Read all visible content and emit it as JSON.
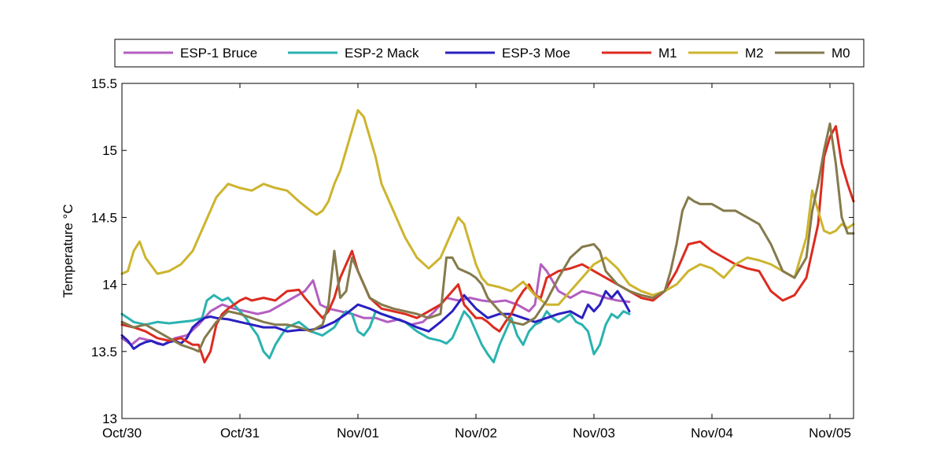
{
  "chart_data": {
    "type": "line",
    "ylabel": "Temperature °C",
    "xlabel": "",
    "title": "",
    "ylim": [
      13,
      15.5
    ],
    "xlim": [
      0,
      6.2
    ],
    "yticks": [
      13,
      13.5,
      14,
      14.5,
      15,
      15.5
    ],
    "ytick_labels": [
      "13",
      "13.5",
      "14",
      "14.5",
      "15",
      "15.5"
    ],
    "xticks": [
      0,
      1,
      2,
      3,
      4,
      5,
      6
    ],
    "xtick_labels": [
      "Oct/30",
      "Oct/31",
      "Nov/01",
      "Nov/02",
      "Nov/03",
      "Nov/04",
      "Nov/05"
    ],
    "legend_position": "top (outside, above plot)",
    "grid": false,
    "series": [
      {
        "name": "ESP-1 Bruce",
        "color": "#B35FC0",
        "x": [
          0,
          0.08,
          0.15,
          0.25,
          0.35,
          0.45,
          0.55,
          0.65,
          0.75,
          0.85,
          0.95,
          1.05,
          1.15,
          1.25,
          1.35,
          1.45,
          1.55,
          1.62,
          1.68,
          1.75,
          1.85,
          1.95,
          2.05,
          2.15,
          2.25,
          2.35,
          2.45,
          2.55,
          2.65,
          2.75,
          2.85,
          2.95,
          3.05,
          3.15,
          3.25,
          3.35,
          3.45,
          3.5,
          3.55,
          3.6,
          3.7,
          3.8,
          3.9,
          4.0,
          4.1,
          4.2,
          4.3
        ],
        "y": [
          13.6,
          13.55,
          13.6,
          13.58,
          13.55,
          13.6,
          13.62,
          13.7,
          13.8,
          13.85,
          13.82,
          13.8,
          13.78,
          13.8,
          13.85,
          13.9,
          13.95,
          14.03,
          13.85,
          13.82,
          13.8,
          13.78,
          13.75,
          13.75,
          13.72,
          13.74,
          13.7,
          13.72,
          13.8,
          13.9,
          13.88,
          13.9,
          13.88,
          13.87,
          13.88,
          13.85,
          13.8,
          13.85,
          14.15,
          14.1,
          13.95,
          13.9,
          13.95,
          13.93,
          13.9,
          13.88,
          13.87
        ]
      },
      {
        "name": "ESP-2 Mack",
        "color": "#2AB3B0",
        "x": [
          0,
          0.1,
          0.2,
          0.3,
          0.4,
          0.5,
          0.6,
          0.68,
          0.72,
          0.78,
          0.85,
          0.9,
          0.95,
          1.0,
          1.05,
          1.1,
          1.15,
          1.2,
          1.25,
          1.3,
          1.35,
          1.4,
          1.5,
          1.6,
          1.7,
          1.8,
          1.85,
          1.9,
          1.95,
          2.0,
          2.05,
          2.1,
          2.15,
          2.2,
          2.3,
          2.4,
          2.5,
          2.6,
          2.7,
          2.75,
          2.8,
          2.85,
          2.9,
          2.95,
          3.0,
          3.05,
          3.1,
          3.15,
          3.2,
          3.25,
          3.3,
          3.35,
          3.4,
          3.45,
          3.5,
          3.55,
          3.6,
          3.65,
          3.7,
          3.75,
          3.8,
          3.85,
          3.9,
          3.95,
          4.0,
          4.05,
          4.1,
          4.15,
          4.2,
          4.25,
          4.3
        ],
        "y": [
          13.78,
          13.72,
          13.7,
          13.72,
          13.71,
          13.72,
          13.73,
          13.75,
          13.88,
          13.92,
          13.88,
          13.9,
          13.85,
          13.8,
          13.75,
          13.68,
          13.62,
          13.5,
          13.45,
          13.55,
          13.62,
          13.68,
          13.72,
          13.65,
          13.62,
          13.68,
          13.75,
          13.8,
          13.78,
          13.65,
          13.62,
          13.68,
          13.8,
          13.78,
          13.75,
          13.72,
          13.65,
          13.6,
          13.58,
          13.56,
          13.6,
          13.7,
          13.8,
          13.75,
          13.65,
          13.55,
          13.48,
          13.42,
          13.55,
          13.65,
          13.75,
          13.62,
          13.55,
          13.65,
          13.7,
          13.72,
          13.8,
          13.75,
          13.72,
          13.75,
          13.78,
          13.72,
          13.7,
          13.65,
          13.48,
          13.55,
          13.7,
          13.78,
          13.75,
          13.8,
          13.78
        ]
      },
      {
        "name": "ESP-3 Moe",
        "color": "#2B20C0",
        "x": [
          0,
          0.05,
          0.1,
          0.15,
          0.2,
          0.25,
          0.3,
          0.35,
          0.4,
          0.45,
          0.5,
          0.55,
          0.6,
          0.65,
          0.7,
          0.75,
          0.8,
          0.9,
          1.0,
          1.1,
          1.2,
          1.3,
          1.4,
          1.5,
          1.6,
          1.7,
          1.8,
          1.9,
          2.0,
          2.1,
          2.2,
          2.3,
          2.4,
          2.5,
          2.6,
          2.7,
          2.8,
          2.9,
          3.0,
          3.1,
          3.2,
          3.3,
          3.4,
          3.5,
          3.6,
          3.7,
          3.8,
          3.9,
          3.95,
          4.0,
          4.05,
          4.1,
          4.15,
          4.2,
          4.25,
          4.3
        ],
        "y": [
          13.62,
          13.58,
          13.52,
          13.55,
          13.57,
          13.58,
          13.56,
          13.55,
          13.57,
          13.58,
          13.56,
          13.6,
          13.68,
          13.72,
          13.75,
          13.76,
          13.75,
          13.74,
          13.72,
          13.7,
          13.68,
          13.68,
          13.65,
          13.66,
          13.66,
          13.68,
          13.72,
          13.78,
          13.85,
          13.82,
          13.78,
          13.75,
          13.72,
          13.68,
          13.65,
          13.72,
          13.8,
          13.92,
          13.82,
          13.75,
          13.78,
          13.78,
          13.75,
          13.72,
          13.75,
          13.78,
          13.8,
          13.75,
          13.85,
          13.8,
          13.85,
          13.95,
          13.9,
          13.95,
          13.88,
          13.8
        ]
      },
      {
        "name": "M1",
        "color": "#DC2B1F",
        "x": [
          0,
          0.1,
          0.2,
          0.3,
          0.4,
          0.5,
          0.6,
          0.65,
          0.7,
          0.75,
          0.8,
          0.85,
          0.9,
          0.95,
          1.0,
          1.05,
          1.1,
          1.2,
          1.3,
          1.4,
          1.5,
          1.55,
          1.6,
          1.65,
          1.7,
          1.75,
          1.8,
          1.85,
          1.9,
          1.95,
          2.0,
          2.05,
          2.1,
          2.2,
          2.3,
          2.4,
          2.5,
          2.6,
          2.7,
          2.8,
          2.85,
          2.9,
          2.95,
          3.0,
          3.05,
          3.1,
          3.15,
          3.2,
          3.25,
          3.3,
          3.35,
          3.4,
          3.45,
          3.5,
          3.55,
          3.6,
          3.7,
          3.8,
          3.9,
          4.0,
          4.1,
          4.2,
          4.3,
          4.4,
          4.5,
          4.6,
          4.7,
          4.8,
          4.9,
          5.0,
          5.1,
          5.2,
          5.3,
          5.4,
          5.5,
          5.6,
          5.7,
          5.8,
          5.9,
          5.95,
          6.0,
          6.05,
          6.1,
          6.15,
          6.2
        ],
        "y": [
          13.7,
          13.68,
          13.65,
          13.6,
          13.58,
          13.6,
          13.55,
          13.55,
          13.42,
          13.5,
          13.7,
          13.78,
          13.82,
          13.85,
          13.88,
          13.9,
          13.88,
          13.9,
          13.88,
          13.95,
          13.96,
          13.9,
          13.85,
          13.8,
          13.75,
          13.8,
          13.9,
          14.05,
          14.15,
          14.25,
          14.1,
          14.0,
          13.9,
          13.82,
          13.8,
          13.78,
          13.75,
          13.8,
          13.85,
          13.95,
          14.0,
          13.85,
          13.8,
          13.75,
          13.75,
          13.72,
          13.68,
          13.65,
          13.72,
          13.78,
          13.88,
          13.95,
          14.0,
          13.92,
          13.9,
          14.05,
          14.1,
          14.12,
          14.15,
          14.1,
          14.05,
          14.0,
          13.95,
          13.9,
          13.88,
          13.95,
          14.1,
          14.3,
          14.32,
          14.25,
          14.2,
          14.15,
          14.12,
          14.1,
          13.95,
          13.88,
          13.92,
          14.05,
          14.45,
          14.95,
          15.1,
          15.18,
          14.9,
          14.75,
          14.62
        ]
      },
      {
        "name": "M2",
        "color": "#CDB42E",
        "x": [
          0,
          0.05,
          0.1,
          0.15,
          0.2,
          0.3,
          0.4,
          0.5,
          0.6,
          0.7,
          0.8,
          0.9,
          1.0,
          1.1,
          1.2,
          1.3,
          1.4,
          1.5,
          1.6,
          1.65,
          1.7,
          1.75,
          1.8,
          1.85,
          1.9,
          1.95,
          2.0,
          2.05,
          2.1,
          2.15,
          2.2,
          2.3,
          2.4,
          2.5,
          2.6,
          2.7,
          2.8,
          2.85,
          2.9,
          2.95,
          3.0,
          3.05,
          3.1,
          3.2,
          3.3,
          3.4,
          3.5,
          3.6,
          3.7,
          3.8,
          3.9,
          4.0,
          4.1,
          4.2,
          4.3,
          4.4,
          4.5,
          4.6,
          4.7,
          4.8,
          4.9,
          5.0,
          5.1,
          5.2,
          5.3,
          5.4,
          5.5,
          5.6,
          5.7,
          5.8,
          5.85,
          5.9,
          5.95,
          6.0,
          6.05,
          6.1,
          6.15,
          6.2
        ],
        "y": [
          14.08,
          14.1,
          14.25,
          14.32,
          14.2,
          14.08,
          14.1,
          14.15,
          14.25,
          14.45,
          14.65,
          14.75,
          14.72,
          14.7,
          14.75,
          14.72,
          14.7,
          14.62,
          14.55,
          14.52,
          14.55,
          14.62,
          14.75,
          14.85,
          15.0,
          15.15,
          15.3,
          15.25,
          15.1,
          14.95,
          14.75,
          14.55,
          14.35,
          14.2,
          14.12,
          14.2,
          14.4,
          14.5,
          14.45,
          14.3,
          14.15,
          14.05,
          14.0,
          13.98,
          13.95,
          14.02,
          13.92,
          13.85,
          13.85,
          13.95,
          14.05,
          14.15,
          14.2,
          14.12,
          14.0,
          13.95,
          13.92,
          13.95,
          14.0,
          14.1,
          14.15,
          14.12,
          14.05,
          14.15,
          14.2,
          14.18,
          14.15,
          14.1,
          14.05,
          14.35,
          14.7,
          14.55,
          14.4,
          14.38,
          14.4,
          14.45,
          14.42,
          14.45
        ]
      },
      {
        "name": "M0",
        "color": "#857A4C",
        "x": [
          0,
          0.1,
          0.2,
          0.3,
          0.4,
          0.5,
          0.6,
          0.65,
          0.7,
          0.8,
          0.9,
          1.0,
          1.1,
          1.2,
          1.3,
          1.4,
          1.5,
          1.6,
          1.7,
          1.75,
          1.8,
          1.85,
          1.9,
          1.95,
          2.0,
          2.05,
          2.1,
          2.2,
          2.3,
          2.4,
          2.5,
          2.6,
          2.7,
          2.75,
          2.8,
          2.85,
          2.9,
          2.95,
          3.0,
          3.05,
          3.1,
          3.2,
          3.3,
          3.4,
          3.5,
          3.6,
          3.7,
          3.8,
          3.9,
          4.0,
          4.05,
          4.1,
          4.2,
          4.3,
          4.4,
          4.5,
          4.6,
          4.65,
          4.7,
          4.75,
          4.8,
          4.85,
          4.9,
          5.0,
          5.1,
          5.2,
          5.3,
          5.4,
          5.5,
          5.6,
          5.7,
          5.8,
          5.85,
          5.9,
          5.95,
          6.0,
          6.05,
          6.1,
          6.15,
          6.2
        ],
        "y": [
          13.72,
          13.68,
          13.7,
          13.65,
          13.6,
          13.55,
          13.52,
          13.5,
          13.6,
          13.72,
          13.8,
          13.78,
          13.75,
          13.72,
          13.7,
          13.7,
          13.68,
          13.65,
          13.7,
          13.85,
          14.25,
          13.9,
          13.95,
          14.2,
          14.1,
          14.0,
          13.9,
          13.85,
          13.82,
          13.8,
          13.78,
          13.75,
          13.78,
          14.2,
          14.2,
          14.12,
          14.1,
          14.08,
          14.05,
          14.0,
          13.9,
          13.8,
          13.72,
          13.7,
          13.75,
          13.88,
          14.05,
          14.2,
          14.28,
          14.3,
          14.25,
          14.1,
          14.0,
          13.95,
          13.92,
          13.9,
          13.95,
          14.1,
          14.3,
          14.55,
          14.65,
          14.62,
          14.6,
          14.6,
          14.55,
          14.55,
          14.5,
          14.45,
          14.3,
          14.1,
          14.05,
          14.2,
          14.55,
          14.75,
          15.0,
          15.2,
          14.9,
          14.5,
          14.38,
          14.38
        ]
      }
    ]
  }
}
